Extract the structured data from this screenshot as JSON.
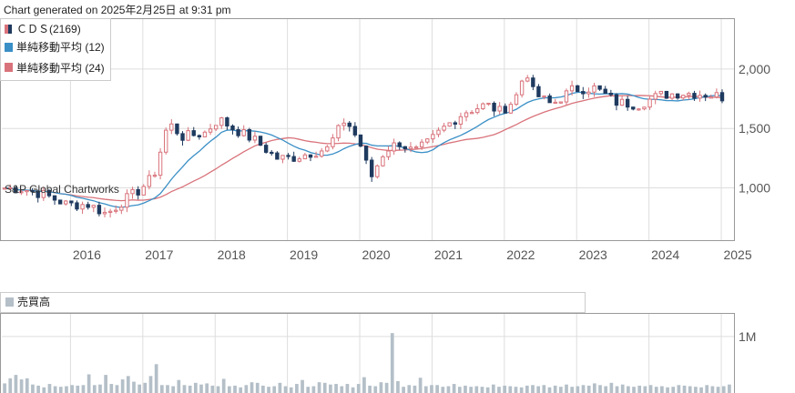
{
  "header": {
    "generated": "Chart generated on 2025年2月25日 at 9:31 pm"
  },
  "watermark": "S&P Global Chartworks",
  "colors": {
    "up": "#d9737b",
    "down": "#1f3a5f",
    "ma12": "#3a8fc6",
    "ma24": "#d9737b",
    "volume": "#b4bfc8",
    "grid": "#dddddd",
    "axis": "#555555"
  },
  "chart_data": [
    {
      "type": "candlestick",
      "title": "",
      "legend": [
        {
          "label": "ＣＤＳ(2169)",
          "color": "#d9737b",
          "color2": "#1f3a5f"
        },
        {
          "label": "単純移動平均 (12)",
          "color": "#3a8fc6"
        },
        {
          "label": "単純移動平均 (24)",
          "color": "#d9737b"
        }
      ],
      "legend_position": "top-left",
      "x_ticks": [
        "2016",
        "2017",
        "2018",
        "2019",
        "2020",
        "2021",
        "2022",
        "2023",
        "2024",
        "2025"
      ],
      "y_ticks": [
        "1,000",
        "1,500",
        "2,000"
      ],
      "y_tick_values": [
        1000,
        1500,
        2000
      ],
      "y_axis_side": "right",
      "ylim": [
        560,
        2420
      ],
      "grid": true,
      "series": [
        {
          "name": "ＣＤＳ(2169)",
          "anchors": [
            [
              2015.0,
              1000
            ],
            [
              2015.3,
              990
            ],
            [
              2015.6,
              940
            ],
            [
              2015.9,
              860
            ],
            [
              2016.2,
              860
            ],
            [
              2016.45,
              780
            ],
            [
              2016.7,
              900
            ],
            [
              2016.9,
              980
            ],
            [
              2017.1,
              1100
            ],
            [
              2017.3,
              1550
            ],
            [
              2017.5,
              1430
            ],
            [
              2017.8,
              1460
            ],
            [
              2018.0,
              1580
            ],
            [
              2018.2,
              1500
            ],
            [
              2018.5,
              1400
            ],
            [
              2018.8,
              1250
            ],
            [
              2019.0,
              1250
            ],
            [
              2019.3,
              1300
            ],
            [
              2019.5,
              1330
            ],
            [
              2019.75,
              1580
            ],
            [
              2019.95,
              1380
            ],
            [
              2020.1,
              1080
            ],
            [
              2020.3,
              1320
            ],
            [
              2020.5,
              1380
            ],
            [
              2020.7,
              1300
            ],
            [
              2020.9,
              1380
            ],
            [
              2021.1,
              1500
            ],
            [
              2021.4,
              1640
            ],
            [
              2021.7,
              1700
            ],
            [
              2021.9,
              1640
            ],
            [
              2022.1,
              1750
            ],
            [
              2022.25,
              2000
            ],
            [
              2022.35,
              1800
            ],
            [
              2022.6,
              1700
            ],
            [
              2022.9,
              1830
            ],
            [
              2023.2,
              1840
            ],
            [
              2023.5,
              1720
            ],
            [
              2023.8,
              1700
            ],
            [
              2024.1,
              1780
            ],
            [
              2024.4,
              1800
            ],
            [
              2024.7,
              1790
            ],
            [
              2024.85,
              1780
            ],
            [
              2025.0,
              1760
            ]
          ]
        },
        {
          "name": "単純移動平均 (12)",
          "derived": "sma",
          "period": 12
        },
        {
          "name": "単純移動平均 (24)",
          "derived": "sma",
          "period": 24
        }
      ]
    },
    {
      "type": "bar",
      "title": "",
      "legend": [
        {
          "label": "売買高",
          "color": "#b4bfc8"
        }
      ],
      "y_ticks": [
        "1M"
      ],
      "y_tick_values": [
        1000000
      ],
      "ylim": [
        0,
        1400000
      ],
      "series": [
        {
          "name": "売買高",
          "values": [
            170000,
            260000,
            320000,
            240000,
            260000,
            150000,
            130000,
            100000,
            160000,
            120000,
            110000,
            120000,
            140000,
            130000,
            140000,
            330000,
            140000,
            150000,
            320000,
            160000,
            140000,
            240000,
            300000,
            200000,
            150000,
            180000,
            300000,
            510000,
            140000,
            140000,
            120000,
            230000,
            140000,
            130000,
            180000,
            150000,
            170000,
            130000,
            120000,
            250000,
            120000,
            130000,
            100000,
            140000,
            190000,
            180000,
            130000,
            110000,
            120000,
            180000,
            120000,
            100000,
            160000,
            230000,
            110000,
            120000,
            190000,
            180000,
            150000,
            160000,
            120000,
            160000,
            100000,
            160000,
            280000,
            130000,
            120000,
            190000,
            180000,
            1060000,
            210000,
            110000,
            140000,
            130000,
            270000,
            120000,
            140000,
            140000,
            110000,
            120000,
            160000,
            110000,
            130000,
            110000,
            120000,
            110000,
            100000,
            150000,
            110000,
            130000,
            120000,
            110000,
            100000,
            130000,
            140000,
            120000,
            140000,
            100000,
            130000,
            110000,
            150000,
            110000,
            120000,
            140000,
            130000,
            170000,
            140000,
            120000,
            180000,
            120000,
            150000,
            120000,
            110000,
            130000,
            120000,
            140000,
            110000,
            120000,
            100000,
            110000,
            140000,
            130000,
            120000,
            110000,
            100000,
            140000,
            120000,
            110000,
            120000,
            150000
          ]
        }
      ]
    }
  ]
}
